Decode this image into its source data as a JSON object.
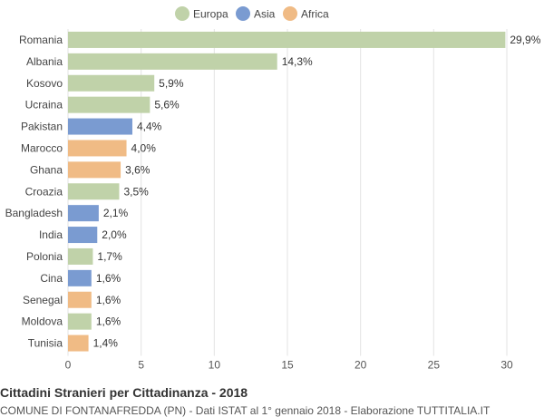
{
  "chart_data": {
    "type": "bar",
    "orientation": "horizontal",
    "title": "Cittadini Stranieri per Cittadinanza - 2018",
    "subtitle": "COMUNE DI FONTANAFREDDA (PN) - Dati ISTAT al 1° gennaio 2018 - Elaborazione TUTTITALIA.IT",
    "legend": [
      {
        "name": "Europa",
        "color": "#c0d2a9"
      },
      {
        "name": "Asia",
        "color": "#7a9bd1"
      },
      {
        "name": "Africa",
        "color": "#f0bb85"
      }
    ],
    "legend_position": "top-center",
    "grid": true,
    "xlim": [
      0,
      30
    ],
    "xticks": [
      0,
      5,
      10,
      15,
      20,
      25,
      30
    ],
    "categories": [
      "Romania",
      "Albania",
      "Kosovo",
      "Ucraina",
      "Pakistan",
      "Marocco",
      "Ghana",
      "Croazia",
      "Bangladesh",
      "India",
      "Polonia",
      "Cina",
      "Senegal",
      "Moldova",
      "Tunisia"
    ],
    "values": [
      29.9,
      14.3,
      5.9,
      5.6,
      4.4,
      4.0,
      3.6,
      3.5,
      2.1,
      2.0,
      1.7,
      1.6,
      1.6,
      1.6,
      1.4
    ],
    "value_labels": [
      "29,9%",
      "14,3%",
      "5,9%",
      "5,6%",
      "4,4%",
      "4,0%",
      "3,6%",
      "3,5%",
      "2,1%",
      "2,0%",
      "1,7%",
      "1,6%",
      "1,6%",
      "1,6%",
      "1,4%"
    ],
    "groups": [
      "Europa",
      "Europa",
      "Europa",
      "Europa",
      "Asia",
      "Africa",
      "Africa",
      "Europa",
      "Asia",
      "Asia",
      "Europa",
      "Asia",
      "Africa",
      "Europa",
      "Africa"
    ]
  }
}
